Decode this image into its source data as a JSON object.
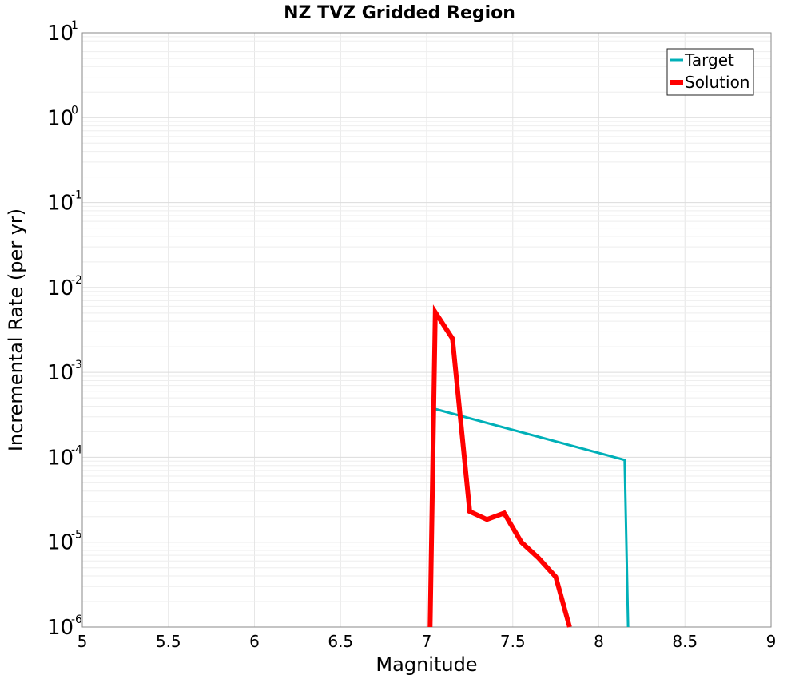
{
  "chart_data": {
    "type": "line",
    "title": "NZ TVZ Gridded Region",
    "xlabel": "Magnitude",
    "ylabel": "Incremental Rate (per yr)",
    "xlim": [
      5,
      9
    ],
    "ylim_log10": [
      -6,
      1
    ],
    "y_scale": "log",
    "x_ticks": [
      "5",
      "5.5",
      "6",
      "6.5",
      "7",
      "7.5",
      "8",
      "8.5",
      "9"
    ],
    "y_ticks": [
      {
        "base": "10",
        "exp": "-6"
      },
      {
        "base": "10",
        "exp": "-5"
      },
      {
        "base": "10",
        "exp": "-4"
      },
      {
        "base": "10",
        "exp": "-3"
      },
      {
        "base": "10",
        "exp": "-2"
      },
      {
        "base": "10",
        "exp": "-1"
      },
      {
        "base": "10",
        "exp": "0"
      },
      {
        "base": "10",
        "exp": "1"
      }
    ],
    "grid": true,
    "legend_position": "top-right",
    "series": [
      {
        "name": "Target",
        "color": "#00B0B8",
        "x": [
          7.05,
          8.15,
          8.17
        ],
        "y": [
          0.00037,
          9.3e-05,
          1e-06
        ]
      },
      {
        "name": "Solution",
        "color": "#FF0000",
        "x": [
          7.02,
          7.05,
          7.15,
          7.25,
          7.35,
          7.45,
          7.55,
          7.65,
          7.75,
          7.83
        ],
        "y": [
          1e-06,
          0.0051,
          0.0025,
          2.3e-05,
          1.85e-05,
          2.2e-05,
          1e-05,
          6.5e-06,
          3.9e-06,
          1e-06
        ]
      }
    ]
  }
}
